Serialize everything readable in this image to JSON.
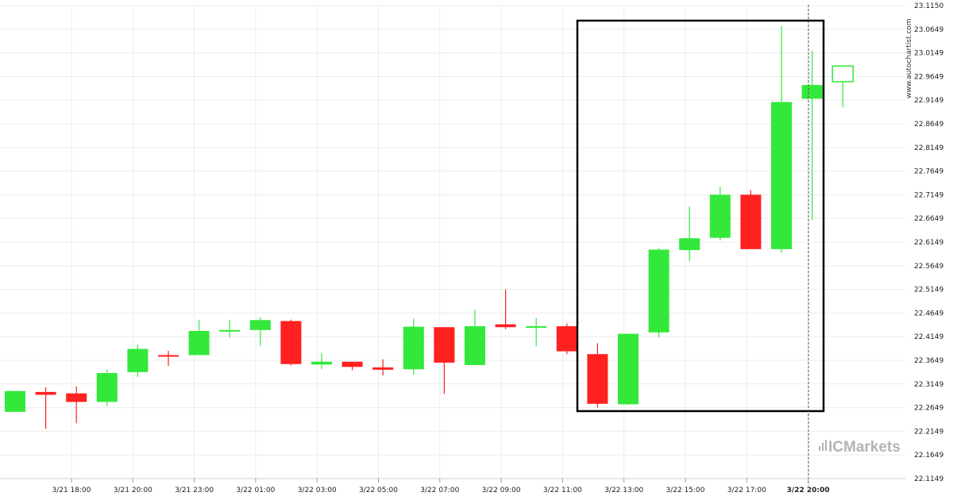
{
  "chart_data": {
    "type": "candlestick",
    "y_ticks": [
      "23.1150",
      "23.0649",
      "23.0149",
      "22.9649",
      "22.9149",
      "22.8649",
      "22.8149",
      "22.7649",
      "22.7149",
      "22.6649",
      "22.6149",
      "22.5649",
      "22.5149",
      "22.4649",
      "22.4149",
      "22.3649",
      "22.3149",
      "22.2649",
      "22.2149",
      "22.1649",
      "22.1149"
    ],
    "ylim": [
      22.1149,
      23.115
    ],
    "x_labels": [
      "3/21 18:00",
      "3/21 20:00",
      "3/21 23:00",
      "3/22 01:00",
      "3/22 03:00",
      "3/22 05:00",
      "3/22 07:00",
      "3/22 09:00",
      "3/22 11:00",
      "3/22 13:00",
      "3/22 15:00",
      "3/22 17:00",
      "3/22 20:00"
    ],
    "highlighted_label": "3/22 20:00",
    "candles": [
      {
        "o": 22.256,
        "h": 22.3,
        "l": 22.256,
        "c": 22.3
      },
      {
        "o": 22.298,
        "h": 22.308,
        "l": 22.22,
        "c": 22.292
      },
      {
        "o": 22.295,
        "h": 22.31,
        "l": 22.232,
        "c": 22.277
      },
      {
        "o": 22.277,
        "h": 22.345,
        "l": 22.268,
        "c": 22.338
      },
      {
        "o": 22.34,
        "h": 22.398,
        "l": 22.33,
        "c": 22.389
      },
      {
        "o": 22.376,
        "h": 22.385,
        "l": 22.353,
        "c": 22.375
      },
      {
        "o": 22.376,
        "h": 22.451,
        "l": 22.376,
        "c": 22.427
      },
      {
        "o": 22.427,
        "h": 22.45,
        "l": 22.413,
        "c": 22.429
      },
      {
        "o": 22.429,
        "h": 22.456,
        "l": 22.395,
        "c": 22.45
      },
      {
        "o": 22.448,
        "h": 22.451,
        "l": 22.354,
        "c": 22.357
      },
      {
        "o": 22.356,
        "h": 22.38,
        "l": 22.346,
        "c": 22.362
      },
      {
        "o": 22.362,
        "h": 22.362,
        "l": 22.344,
        "c": 22.351
      },
      {
        "o": 22.35,
        "h": 22.367,
        "l": 22.333,
        "c": 22.345
      },
      {
        "o": 22.346,
        "h": 22.453,
        "l": 22.334,
        "c": 22.436
      },
      {
        "o": 22.435,
        "h": 22.435,
        "l": 22.294,
        "c": 22.36
      },
      {
        "o": 22.355,
        "h": 22.472,
        "l": 22.355,
        "c": 22.437
      },
      {
        "o": 22.441,
        "h": 22.515,
        "l": 22.431,
        "c": 22.435
      },
      {
        "o": 22.435,
        "h": 22.454,
        "l": 22.395,
        "c": 22.437
      },
      {
        "o": 22.437,
        "h": 22.443,
        "l": 22.378,
        "c": 22.384
      },
      {
        "o": 22.378,
        "h": 22.401,
        "l": 22.265,
        "c": 22.273
      },
      {
        "o": 22.272,
        "h": 22.421,
        "l": 22.271,
        "c": 22.421
      },
      {
        "o": 22.424,
        "h": 22.603,
        "l": 22.414,
        "c": 22.599
      },
      {
        "o": 22.598,
        "h": 22.69,
        "l": 22.574,
        "c": 22.623
      },
      {
        "o": 22.624,
        "h": 22.732,
        "l": 22.618,
        "c": 22.715
      },
      {
        "o": 22.715,
        "h": 22.725,
        "l": 22.6,
        "c": 22.6
      },
      {
        "o": 22.6,
        "h": 23.072,
        "l": 22.592,
        "c": 22.911
      },
      {
        "o": 22.918,
        "h": 23.02,
        "l": 22.662,
        "c": 22.947
      },
      {
        "o": 22.954,
        "h": 22.989,
        "l": 22.9,
        "c": 22.987
      }
    ],
    "colors": {
      "up": "#33e83a",
      "down": "#ff2020",
      "wick_up": "#33e83a",
      "wick_down": "#ff2020",
      "grid": "#ececec",
      "box": "#000000",
      "cursor": "#555555"
    }
  },
  "watermark": "www.autochartist.com",
  "brand": "ICMarkets"
}
